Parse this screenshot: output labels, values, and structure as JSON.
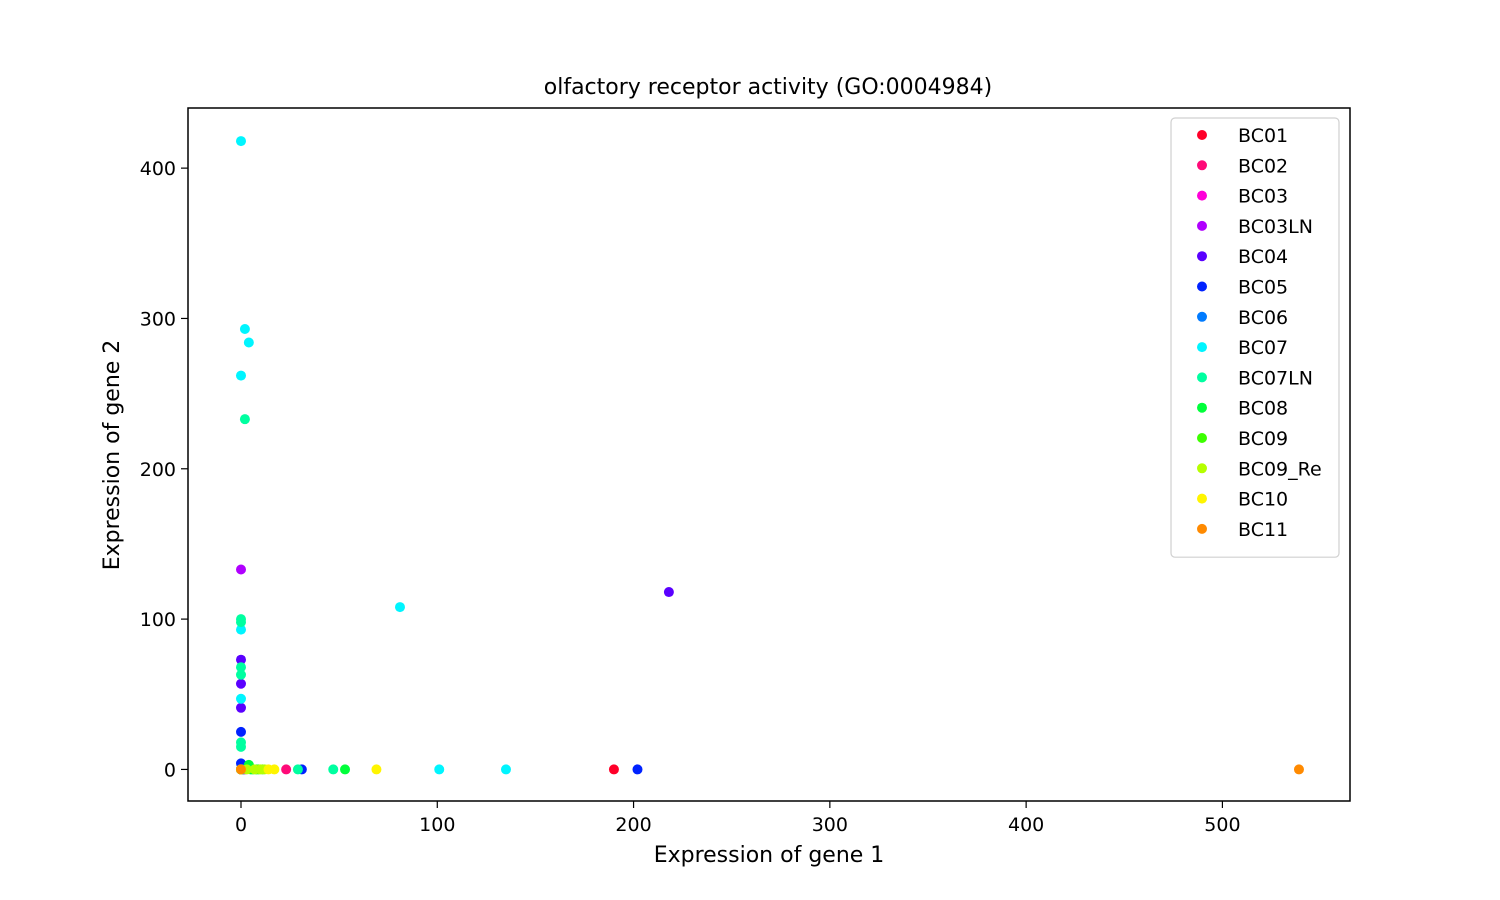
{
  "chart_data": {
    "type": "scatter",
    "title": "olfactory receptor activity (GO:0004984)",
    "xlabel": "Expression of gene 1",
    "ylabel": "Expression of gene 2",
    "xlim": [
      -27,
      565
    ],
    "ylim": [
      -21,
      440
    ],
    "x_ticks": [
      0,
      100,
      200,
      300,
      400,
      500
    ],
    "y_ticks": [
      0,
      100,
      200,
      300,
      400
    ],
    "grid": false,
    "legend_position": "top-right",
    "series": [
      {
        "name": "BC01",
        "color": "#ff0029",
        "points": [
          [
            0,
            0
          ],
          [
            1,
            0
          ],
          [
            190,
            0
          ]
        ]
      },
      {
        "name": "BC02",
        "color": "#ff0a78",
        "points": [
          [
            0,
            0
          ],
          [
            2,
            0
          ],
          [
            23,
            0
          ]
        ]
      },
      {
        "name": "BC03",
        "color": "#ff00d9",
        "points": [
          [
            0,
            0
          ],
          [
            1,
            0
          ]
        ]
      },
      {
        "name": "BC03LN",
        "color": "#b000ff",
        "points": [
          [
            0,
            133
          ],
          [
            0,
            0
          ]
        ]
      },
      {
        "name": "BC04",
        "color": "#5a00ff",
        "points": [
          [
            218,
            118
          ],
          [
            0,
            73
          ],
          [
            0,
            57
          ],
          [
            0,
            41
          ],
          [
            0,
            0
          ]
        ]
      },
      {
        "name": "BC05",
        "color": "#0022ff",
        "points": [
          [
            0,
            25
          ],
          [
            0,
            4
          ],
          [
            0,
            0
          ],
          [
            31,
            0
          ],
          [
            202,
            0
          ]
        ]
      },
      {
        "name": "BC06",
        "color": "#007bff",
        "points": [
          [
            0,
            0
          ],
          [
            1,
            0
          ]
        ]
      },
      {
        "name": "BC07",
        "color": "#00f5ff",
        "points": [
          [
            0,
            418
          ],
          [
            2,
            293
          ],
          [
            4,
            284
          ],
          [
            0,
            262
          ],
          [
            81,
            108
          ],
          [
            0,
            93
          ],
          [
            0,
            47
          ],
          [
            0,
            0
          ],
          [
            101,
            0
          ],
          [
            135,
            0
          ]
        ]
      },
      {
        "name": "BC07LN",
        "color": "#00ffa0",
        "points": [
          [
            2,
            233
          ],
          [
            0,
            100
          ],
          [
            0,
            98
          ],
          [
            0,
            68
          ],
          [
            0,
            63
          ],
          [
            0,
            18
          ],
          [
            0,
            15
          ],
          [
            0,
            0
          ],
          [
            29,
            0
          ],
          [
            47,
            0
          ]
        ]
      },
      {
        "name": "BC08",
        "color": "#00ff3a",
        "points": [
          [
            4,
            3
          ],
          [
            0,
            0
          ],
          [
            5,
            0
          ],
          [
            6,
            0
          ],
          [
            8,
            0
          ],
          [
            53,
            0
          ]
        ]
      },
      {
        "name": "BC09",
        "color": "#3cff00",
        "points": [
          [
            0,
            0
          ],
          [
            9,
            0
          ],
          [
            11,
            0
          ]
        ]
      },
      {
        "name": "BC09_Re",
        "color": "#b5ff00",
        "points": [
          [
            0,
            0
          ],
          [
            3,
            0
          ],
          [
            7,
            0
          ],
          [
            10,
            0
          ],
          [
            12,
            0
          ]
        ]
      },
      {
        "name": "BC10",
        "color": "#fff500",
        "points": [
          [
            0,
            0
          ],
          [
            14,
            0
          ],
          [
            17,
            0
          ],
          [
            69,
            0
          ]
        ]
      },
      {
        "name": "BC11",
        "color": "#ff8a00",
        "points": [
          [
            0,
            0
          ],
          [
            539,
            0
          ]
        ]
      }
    ]
  }
}
